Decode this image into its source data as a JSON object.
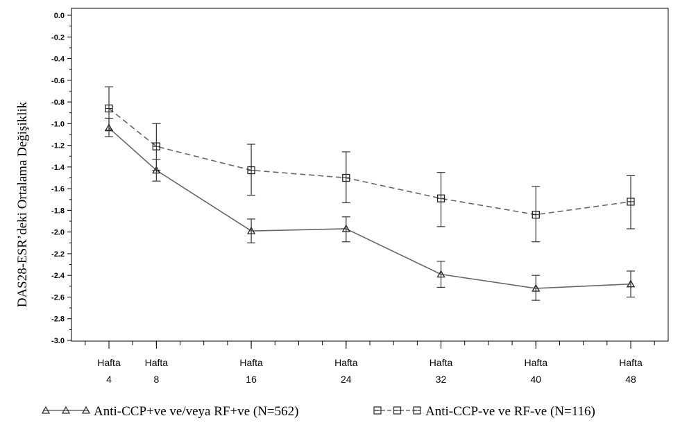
{
  "chart_data": {
    "type": "line",
    "ylabel": "DAS28-ESR’deki Ortalama Değişiklik",
    "xlabel": "",
    "ylim": [
      -3.0,
      0.0
    ],
    "yticks": [
      "0.0",
      "-0.2",
      "-0.4",
      "-0.6",
      "-0.8",
      "-1.0",
      "-1.2",
      "-1.4",
      "-1.6",
      "-1.8",
      "-2.0",
      "-2.2",
      "-2.4",
      "-2.6",
      "-2.8",
      "-3.0"
    ],
    "x": [
      4,
      8,
      16,
      24,
      32,
      40,
      48
    ],
    "xtick_labels": [
      {
        "top": "Hafta",
        "bottom": "4"
      },
      {
        "top": "Hafta",
        "bottom": "8"
      },
      {
        "top": "Hafta",
        "bottom": "16"
      },
      {
        "top": "Hafta",
        "bottom": "24"
      },
      {
        "top": "Hafta",
        "bottom": "32"
      },
      {
        "top": "Hafta",
        "bottom": "40"
      },
      {
        "top": "Hafta",
        "bottom": "48"
      }
    ],
    "grid": false,
    "legend_position": "bottom",
    "series": [
      {
        "name": "Anti-CCP+ve ve/veya RF+ve (N=562)",
        "marker": "triangle",
        "line_style": "solid",
        "color": "#666666",
        "values": [
          -1.04,
          -1.43,
          -1.99,
          -1.97,
          -2.39,
          -2.52,
          -2.48
        ],
        "error_low": [
          -1.12,
          -1.53,
          -2.1,
          -2.09,
          -2.51,
          -2.63,
          -2.6
        ],
        "error_high": [
          -0.95,
          -1.33,
          -1.88,
          -1.86,
          -2.27,
          -2.4,
          -2.36
        ]
      },
      {
        "name": "Anti-CCP-ve ve RF-ve (N=116)",
        "marker": "square",
        "line_style": "dashed",
        "color": "#666666",
        "values": [
          -0.86,
          -1.21,
          -1.43,
          -1.5,
          -1.69,
          -1.84,
          -1.72
        ],
        "error_low": [
          -1.06,
          -1.43,
          -1.66,
          -1.73,
          -1.95,
          -2.09,
          -1.97
        ],
        "error_high": [
          -0.66,
          -1.0,
          -1.19,
          -1.26,
          -1.45,
          -1.58,
          -1.48
        ]
      }
    ]
  }
}
